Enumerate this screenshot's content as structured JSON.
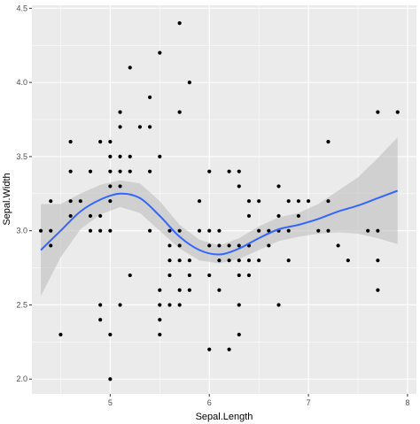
{
  "chart_data": {
    "type": "scatter",
    "xlabel": "Sepal.Length",
    "ylabel": "Sepal.Width",
    "xlim": [
      4.21,
      8.09
    ],
    "ylim": [
      1.9,
      4.52
    ],
    "x_ticks": [
      5,
      6,
      7,
      8
    ],
    "y_ticks": [
      2.0,
      2.5,
      3.0,
      3.5,
      4.0,
      4.5
    ],
    "x_tick_labels": [
      "5",
      "6",
      "7",
      "8"
    ],
    "y_tick_labels": [
      "2.0",
      "2.5",
      "3.0",
      "3.5",
      "4.0",
      "4.5"
    ],
    "grid": true,
    "panel_background": "#ebebeb",
    "grid_color": "#ffffff",
    "point_color": "#000000",
    "smooth_color": "#3366ff",
    "ribbon_color": "#bebebe",
    "points": [
      [
        4.3,
        3.0
      ],
      [
        4.4,
        2.9
      ],
      [
        4.4,
        3.0
      ],
      [
        4.4,
        3.2
      ],
      [
        4.5,
        2.3
      ],
      [
        4.6,
        3.1
      ],
      [
        4.6,
        3.2
      ],
      [
        4.6,
        3.4
      ],
      [
        4.6,
        3.6
      ],
      [
        4.7,
        3.2
      ],
      [
        4.8,
        3.0
      ],
      [
        4.8,
        3.1
      ],
      [
        4.8,
        3.4
      ],
      [
        4.9,
        2.4
      ],
      [
        4.9,
        2.5
      ],
      [
        4.9,
        3.0
      ],
      [
        4.9,
        3.1
      ],
      [
        4.9,
        3.6
      ],
      [
        5.0,
        2.0
      ],
      [
        5.0,
        2.3
      ],
      [
        5.0,
        3.0
      ],
      [
        5.0,
        3.2
      ],
      [
        5.0,
        3.3
      ],
      [
        5.0,
        3.4
      ],
      [
        5.0,
        3.5
      ],
      [
        5.0,
        3.6
      ],
      [
        5.1,
        2.5
      ],
      [
        5.1,
        3.3
      ],
      [
        5.1,
        3.4
      ],
      [
        5.1,
        3.5
      ],
      [
        5.1,
        3.7
      ],
      [
        5.1,
        3.8
      ],
      [
        5.2,
        2.7
      ],
      [
        5.2,
        3.4
      ],
      [
        5.2,
        3.5
      ],
      [
        5.2,
        4.1
      ],
      [
        5.3,
        3.7
      ],
      [
        5.4,
        3.0
      ],
      [
        5.4,
        3.4
      ],
      [
        5.4,
        3.7
      ],
      [
        5.4,
        3.9
      ],
      [
        5.5,
        2.3
      ],
      [
        5.5,
        2.4
      ],
      [
        5.5,
        2.5
      ],
      [
        5.5,
        2.6
      ],
      [
        5.5,
        3.5
      ],
      [
        5.5,
        4.2
      ],
      [
        5.6,
        2.5
      ],
      [
        5.6,
        2.7
      ],
      [
        5.6,
        2.8
      ],
      [
        5.6,
        2.9
      ],
      [
        5.6,
        3.0
      ],
      [
        5.7,
        2.5
      ],
      [
        5.7,
        2.6
      ],
      [
        5.7,
        2.8
      ],
      [
        5.7,
        2.9
      ],
      [
        5.7,
        3.0
      ],
      [
        5.7,
        3.8
      ],
      [
        5.7,
        4.4
      ],
      [
        5.8,
        2.6
      ],
      [
        5.8,
        2.7
      ],
      [
        5.8,
        2.8
      ],
      [
        5.8,
        4.0
      ],
      [
        5.9,
        3.0
      ],
      [
        5.9,
        3.2
      ],
      [
        6.0,
        2.2
      ],
      [
        6.0,
        2.7
      ],
      [
        6.0,
        2.9
      ],
      [
        6.0,
        3.0
      ],
      [
        6.0,
        3.4
      ],
      [
        6.1,
        2.6
      ],
      [
        6.1,
        2.8
      ],
      [
        6.1,
        2.9
      ],
      [
        6.1,
        3.0
      ],
      [
        6.2,
        2.2
      ],
      [
        6.2,
        2.8
      ],
      [
        6.2,
        2.9
      ],
      [
        6.2,
        3.4
      ],
      [
        6.3,
        2.3
      ],
      [
        6.3,
        2.5
      ],
      [
        6.3,
        2.7
      ],
      [
        6.3,
        2.8
      ],
      [
        6.3,
        2.9
      ],
      [
        6.3,
        3.3
      ],
      [
        6.3,
        3.4
      ],
      [
        6.4,
        2.7
      ],
      [
        6.4,
        2.8
      ],
      [
        6.4,
        2.9
      ],
      [
        6.4,
        3.1
      ],
      [
        6.4,
        3.2
      ],
      [
        6.5,
        2.8
      ],
      [
        6.5,
        3.0
      ],
      [
        6.5,
        3.2
      ],
      [
        6.6,
        2.9
      ],
      [
        6.6,
        3.0
      ],
      [
        6.7,
        2.5
      ],
      [
        6.7,
        3.0
      ],
      [
        6.7,
        3.1
      ],
      [
        6.7,
        3.3
      ],
      [
        6.8,
        2.8
      ],
      [
        6.8,
        3.0
      ],
      [
        6.8,
        3.2
      ],
      [
        6.9,
        3.1
      ],
      [
        6.9,
        3.2
      ],
      [
        7.0,
        3.2
      ],
      [
        7.1,
        3.0
      ],
      [
        7.2,
        3.0
      ],
      [
        7.2,
        3.2
      ],
      [
        7.2,
        3.6
      ],
      [
        7.3,
        2.9
      ],
      [
        7.4,
        2.8
      ],
      [
        7.6,
        3.0
      ],
      [
        7.7,
        2.6
      ],
      [
        7.7,
        2.8
      ],
      [
        7.7,
        3.0
      ],
      [
        7.7,
        3.8
      ],
      [
        7.9,
        3.8
      ]
    ],
    "smooth": {
      "x": [
        4.3,
        4.5,
        4.7,
        4.9,
        5.1,
        5.3,
        5.5,
        5.7,
        5.9,
        6.1,
        6.3,
        6.5,
        6.7,
        6.9,
        7.1,
        7.3,
        7.5,
        7.7,
        7.9
      ],
      "y": [
        2.87,
        3.0,
        3.13,
        3.21,
        3.25,
        3.22,
        3.1,
        2.96,
        2.87,
        2.84,
        2.88,
        2.95,
        3.01,
        3.04,
        3.08,
        3.13,
        3.17,
        3.22,
        3.27
      ],
      "lo": [
        2.56,
        2.82,
        3.01,
        3.11,
        3.16,
        3.12,
        3.0,
        2.88,
        2.8,
        2.78,
        2.81,
        2.87,
        2.93,
        2.96,
        2.98,
        2.99,
        2.98,
        2.95,
        2.91
      ],
      "hi": [
        3.18,
        3.18,
        3.25,
        3.31,
        3.34,
        3.32,
        3.2,
        3.04,
        2.94,
        2.9,
        2.95,
        3.03,
        3.09,
        3.12,
        3.18,
        3.27,
        3.36,
        3.49,
        3.63
      ]
    }
  }
}
